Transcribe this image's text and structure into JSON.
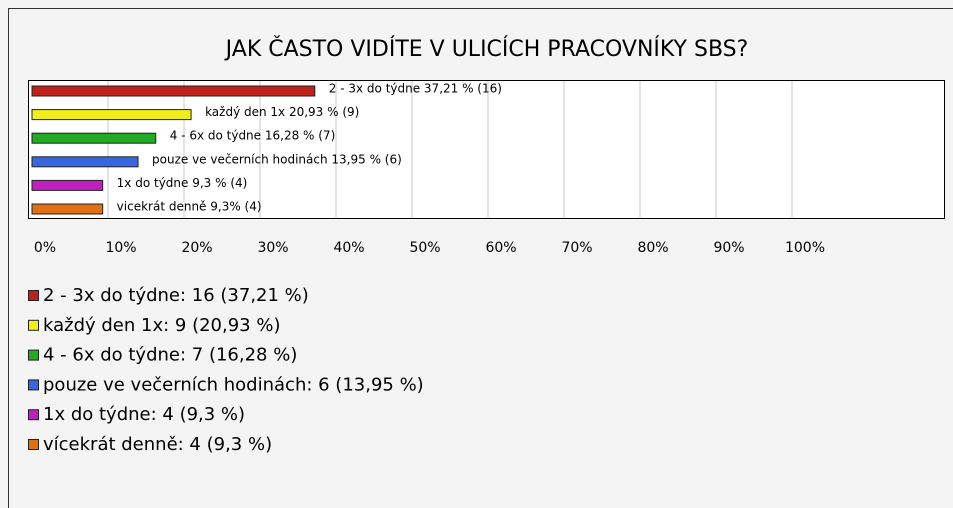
{
  "chart_data": {
    "type": "hbar",
    "title": "JAK ČASTO VIDÍTE V ULICÍCH PRACOVNÍKY SBS?",
    "categories": [
      "2 - 3x do týdne",
      "každý den 1x",
      "4 - 6x do týdne",
      "pouze ve večerních hodinách",
      "1x do týdne",
      "vícekrát denně"
    ],
    "values": [
      37.21,
      20.93,
      16.28,
      13.95,
      9.3,
      9.3
    ],
    "value_labels": [
      "2 - 3x do týdne 37,21 % (16)",
      "každý den 1x 20,93 % (9)",
      "4 - 6x do týdne 16,28 % (7)",
      "pouze ve večerních hodinách 13,95 % (6)",
      "1x do týdne 9,3 % (4)",
      "vicekrát denně 9,3% (4)"
    ],
    "legend_labels": [
      "2 - 3x do týdne: 16 (37,21 %)",
      "každý den 1x: 9 (20,93 %)",
      "4 - 6x do týdne: 7 (16,28 %)",
      "pouze ve večerních hodinách: 6 (13,95 %)",
      "1x do týdne: 4 (9,3 %)",
      "vícekrát denně: 4 (9,3 %)"
    ],
    "colors": [
      "#c0201a",
      "#f2ee1c",
      "#22aa22",
      "#3a66dd",
      "#c020c0",
      "#e07010"
    ],
    "xlim": [
      0,
      100
    ],
    "xticks": [
      {
        "value": 0,
        "label": "0%"
      },
      {
        "value": 10,
        "label": "10%"
      },
      {
        "value": 20,
        "label": "20%"
      },
      {
        "value": 30,
        "label": "30%"
      },
      {
        "value": 40,
        "label": "40%"
      },
      {
        "value": 50,
        "label": "50%"
      },
      {
        "value": 60,
        "label": "60%"
      },
      {
        "value": 70,
        "label": "70%"
      },
      {
        "value": 80,
        "label": "80%"
      },
      {
        "value": 90,
        "label": "90%"
      },
      {
        "value": 100,
        "label": "100%"
      }
    ],
    "grid": true
  }
}
